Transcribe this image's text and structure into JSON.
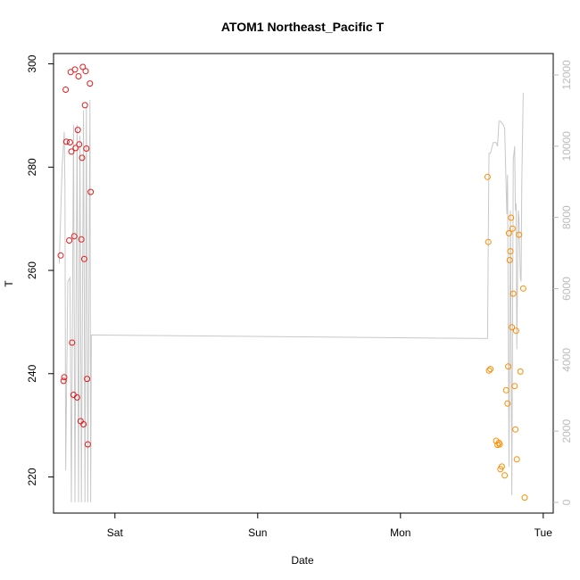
{
  "chart_data": {
    "type": "scatter",
    "title": "ATOM1 Northeast_Pacific T",
    "xlabel": "Date",
    "ylabel": "T",
    "x_ticks": [
      "Sat",
      "Sun",
      "Mon",
      "Tue"
    ],
    "xlim_days": [
      -0.43,
      3.07
    ],
    "ylim": [
      213,
      302
    ],
    "y_ticks": [
      220,
      240,
      260,
      280,
      300
    ],
    "y2lim": [
      -300,
      12600
    ],
    "y2_ticks": [
      0,
      2000,
      4000,
      6000,
      8000,
      10000,
      12000
    ],
    "grid": false,
    "colors": {
      "series_a": "#e41a1c",
      "series_b": "#ff8c00",
      "altitude_line": "#c8c8c8",
      "right_axis": "#bbbbbb"
    },
    "series": [
      {
        "name": "",
        "color": "#e41a1c",
        "points": [
          [
            -0.38,
            262.9
          ],
          [
            -0.36,
            238.6
          ],
          [
            -0.355,
            239.3
          ],
          [
            -0.345,
            295.0
          ],
          [
            -0.34,
            284.9
          ],
          [
            -0.32,
            265.8
          ],
          [
            -0.315,
            284.8
          ],
          [
            -0.31,
            298.4
          ],
          [
            -0.305,
            283.0
          ],
          [
            -0.3,
            246.0
          ],
          [
            -0.29,
            235.9
          ],
          [
            -0.285,
            266.6
          ],
          [
            -0.28,
            298.9
          ],
          [
            -0.275,
            283.7
          ],
          [
            -0.265,
            235.4
          ],
          [
            -0.26,
            287.2
          ],
          [
            -0.255,
            297.6
          ],
          [
            -0.25,
            284.4
          ],
          [
            -0.24,
            230.8
          ],
          [
            -0.235,
            266.0
          ],
          [
            -0.23,
            281.8
          ],
          [
            -0.225,
            299.4
          ],
          [
            -0.22,
            230.2
          ],
          [
            -0.215,
            262.2
          ],
          [
            -0.21,
            292.0
          ],
          [
            -0.205,
            298.6
          ],
          [
            -0.2,
            283.6
          ],
          [
            -0.195,
            239.0
          ],
          [
            -0.19,
            226.3
          ],
          [
            -0.175,
            296.2
          ],
          [
            -0.17,
            275.2
          ]
        ]
      },
      {
        "name": "",
        "color": "#ff8c00",
        "points": [
          [
            2.61,
            278.1
          ],
          [
            2.615,
            265.5
          ],
          [
            2.62,
            240.6
          ],
          [
            2.63,
            240.9
          ],
          [
            2.67,
            227.0
          ],
          [
            2.68,
            226.2
          ],
          [
            2.69,
            226.6
          ],
          [
            2.695,
            226.3
          ],
          [
            2.7,
            221.5
          ],
          [
            2.71,
            222.0
          ],
          [
            2.73,
            220.3
          ],
          [
            2.74,
            236.8
          ],
          [
            2.75,
            234.2
          ],
          [
            2.755,
            241.4
          ],
          [
            2.76,
            267.2
          ],
          [
            2.765,
            262.0
          ],
          [
            2.77,
            263.7
          ],
          [
            2.775,
            270.2
          ],
          [
            2.78,
            249.0
          ],
          [
            2.785,
            268.1
          ],
          [
            2.79,
            255.5
          ],
          [
            2.8,
            237.6
          ],
          [
            2.805,
            229.2
          ],
          [
            2.81,
            248.3
          ],
          [
            2.815,
            223.4
          ],
          [
            2.83,
            266.9
          ],
          [
            2.84,
            240.4
          ],
          [
            2.86,
            256.5
          ],
          [
            2.87,
            216.0
          ]
        ]
      },
      {
        "name": "",
        "type": "line",
        "axis": "right",
        "color": "#c8c8c8",
        "points": [
          [
            -0.39,
            6700
          ],
          [
            -0.37,
            9400
          ],
          [
            -0.355,
            10400
          ],
          [
            -0.35,
            8800
          ],
          [
            -0.345,
            900
          ],
          [
            -0.33,
            6200
          ],
          [
            -0.315,
            6300
          ],
          [
            -0.305,
            0
          ],
          [
            -0.29,
            10600
          ],
          [
            -0.28,
            0
          ],
          [
            -0.265,
            10600
          ],
          [
            -0.255,
            0
          ],
          [
            -0.245,
            10300
          ],
          [
            -0.235,
            0
          ],
          [
            -0.22,
            11000
          ],
          [
            -0.21,
            0
          ],
          [
            -0.2,
            11100
          ],
          [
            -0.19,
            0
          ],
          [
            -0.175,
            11300
          ],
          [
            -0.17,
            0
          ],
          [
            -0.165,
            4700
          ],
          [
            2.61,
            4600
          ],
          [
            2.615,
            7300
          ],
          [
            2.62,
            9800
          ],
          [
            2.63,
            9800
          ],
          [
            2.65,
            10100
          ],
          [
            2.66,
            10100
          ],
          [
            2.67,
            10100
          ],
          [
            2.68,
            10000
          ],
          [
            2.69,
            10700
          ],
          [
            2.7,
            10700
          ],
          [
            2.72,
            10600
          ],
          [
            2.73,
            10500
          ],
          [
            2.745,
            8100
          ],
          [
            2.75,
            9200
          ],
          [
            2.76,
            1000
          ],
          [
            2.77,
            8200
          ],
          [
            2.78,
            200
          ],
          [
            2.79,
            9600
          ],
          [
            2.8,
            10000
          ],
          [
            2.805,
            8200
          ],
          [
            2.81,
            8400
          ],
          [
            2.815,
            4300
          ],
          [
            2.825,
            8200
          ],
          [
            2.83,
            8000
          ],
          [
            2.84,
            6300
          ],
          [
            2.845,
            6200
          ],
          [
            2.85,
            9000
          ],
          [
            2.86,
            11500
          ]
        ]
      }
    ]
  }
}
